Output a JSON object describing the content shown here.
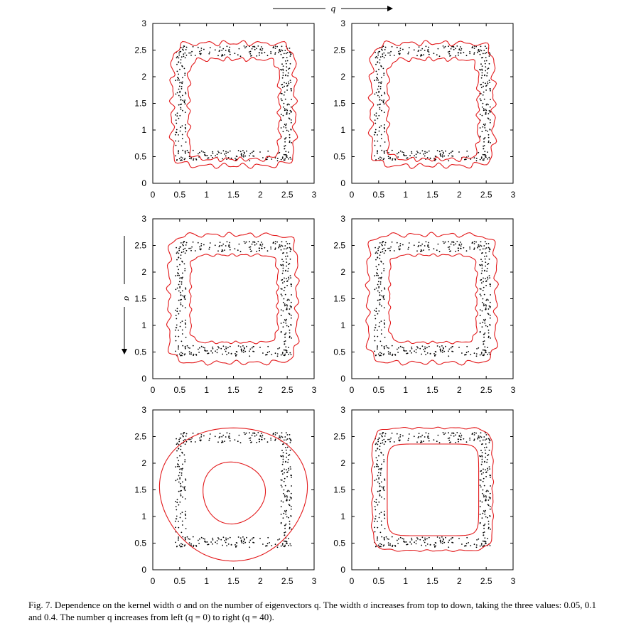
{
  "figure": {
    "top_arrow_label": "q",
    "left_arrow_label": "σ",
    "caption": {
      "prefix": "Fig. 7.",
      "text": " Dependence on the kernel width σ and on the number of eigenvectors q. The width σ increases from top to down, taking the three values: 0.05, 0.1 and 0.4. The number q increases from left (q = 0) to right (q = 40)."
    }
  },
  "colors": {
    "contour": "#e31a1c",
    "points": "#000000",
    "frame": "#000000"
  },
  "chart_data": [
    {
      "type": "scatter",
      "sigma": 0.05,
      "q": 0,
      "xlim": [
        0,
        3
      ],
      "ylim": [
        0,
        3
      ],
      "xticks": [
        "0",
        "0.5",
        "1",
        "1.5",
        "2",
        "2.5",
        "3"
      ],
      "yticks": [
        "0",
        "0.5",
        "1",
        "1.5",
        "2",
        "2.5",
        "3"
      ],
      "data": "points sampled from a square ring with outer side ≈ [0.4,2.6] and inner side ≈ [0.6,2.4]",
      "contours": [
        {
          "kind": "outer",
          "xmin": 0.36,
          "xmax": 2.64,
          "ymin": 0.33,
          "ymax": 2.63,
          "wave": 0.03
        },
        {
          "kind": "inner",
          "xmin": 0.67,
          "xmax": 2.35,
          "ymin": 0.45,
          "ymax": 2.33,
          "wave": 0.03
        }
      ]
    },
    {
      "type": "scatter",
      "sigma": 0.05,
      "q": 40,
      "xlim": [
        0,
        3
      ],
      "ylim": [
        0,
        3
      ],
      "xticks": [
        "0",
        "0.5",
        "1",
        "1.5",
        "2",
        "2.5",
        "3"
      ],
      "yticks": [
        "0",
        "0.5",
        "1",
        "1.5",
        "2",
        "2.5",
        "3"
      ],
      "contours": [
        {
          "kind": "outer",
          "xmin": 0.36,
          "xmax": 2.64,
          "ymin": 0.33,
          "ymax": 2.63,
          "wave": 0.03
        },
        {
          "kind": "inner",
          "xmin": 0.67,
          "xmax": 2.35,
          "ymin": 0.45,
          "ymax": 2.33,
          "wave": 0.03
        }
      ]
    },
    {
      "type": "scatter",
      "sigma": 0.1,
      "q": 0,
      "xlim": [
        0,
        3
      ],
      "ylim": [
        0,
        3
      ],
      "xticks": [
        "0",
        "0.5",
        "1",
        "1.5",
        "2",
        "2.5",
        "3"
      ],
      "yticks": [
        "0",
        "0.5",
        "1",
        "1.5",
        "2",
        "2.5",
        "3"
      ],
      "contours": [
        {
          "kind": "outer",
          "xmin": 0.3,
          "xmax": 2.68,
          "ymin": 0.3,
          "ymax": 2.7,
          "wave": 0.025
        },
        {
          "kind": "inner",
          "xmin": 0.7,
          "xmax": 2.32,
          "ymin": 0.68,
          "ymax": 2.32,
          "wave": 0.02
        }
      ]
    },
    {
      "type": "scatter",
      "sigma": 0.1,
      "q": 40,
      "xlim": [
        0,
        3
      ],
      "ylim": [
        0,
        3
      ],
      "xticks": [
        "0",
        "0.5",
        "1",
        "1.5",
        "2",
        "2.5",
        "3"
      ],
      "yticks": [
        "0",
        "0.5",
        "1",
        "1.5",
        "2",
        "2.5",
        "3"
      ],
      "contours": [
        {
          "kind": "outer",
          "xmin": 0.3,
          "xmax": 2.68,
          "ymin": 0.3,
          "ymax": 2.7,
          "wave": 0.025
        },
        {
          "kind": "inner",
          "xmin": 0.7,
          "xmax": 2.32,
          "ymin": 0.68,
          "ymax": 2.32,
          "wave": 0.02
        }
      ]
    },
    {
      "type": "scatter",
      "sigma": 0.4,
      "q": 0,
      "xlim": [
        0,
        3
      ],
      "ylim": [
        0,
        3
      ],
      "xticks": [
        "0",
        "0.5",
        "1",
        "1.5",
        "2",
        "2.5",
        "3"
      ],
      "yticks": [
        "0",
        "0.5",
        "1",
        "1.5",
        "2",
        "2.5",
        "3"
      ],
      "contours": [
        {
          "kind": "outer",
          "cx": 1.5,
          "cy": 1.45,
          "rx": 1.37,
          "ry": 1.25
        },
        {
          "kind": "inner",
          "cx": 1.5,
          "cy": 1.45,
          "rx": 0.58,
          "ry": 0.58
        }
      ]
    },
    {
      "type": "scatter",
      "sigma": 0.4,
      "q": 40,
      "xlim": [
        0,
        3
      ],
      "ylim": [
        0,
        3
      ],
      "xticks": [
        "0",
        "0.5",
        "1",
        "1.5",
        "2",
        "2.5",
        "3"
      ],
      "yticks": [
        "0",
        "0.5",
        "1",
        "1.5",
        "2",
        "2.5",
        "3"
      ],
      "contours": [
        {
          "kind": "outer",
          "xmin": 0.38,
          "xmax": 2.62,
          "ymin": 0.36,
          "ymax": 2.66,
          "wave": 0.01
        },
        {
          "kind": "inner",
          "xmin": 0.66,
          "xmax": 2.36,
          "ymin": 0.64,
          "ymax": 2.36,
          "wave": 0.0
        }
      ]
    }
  ]
}
